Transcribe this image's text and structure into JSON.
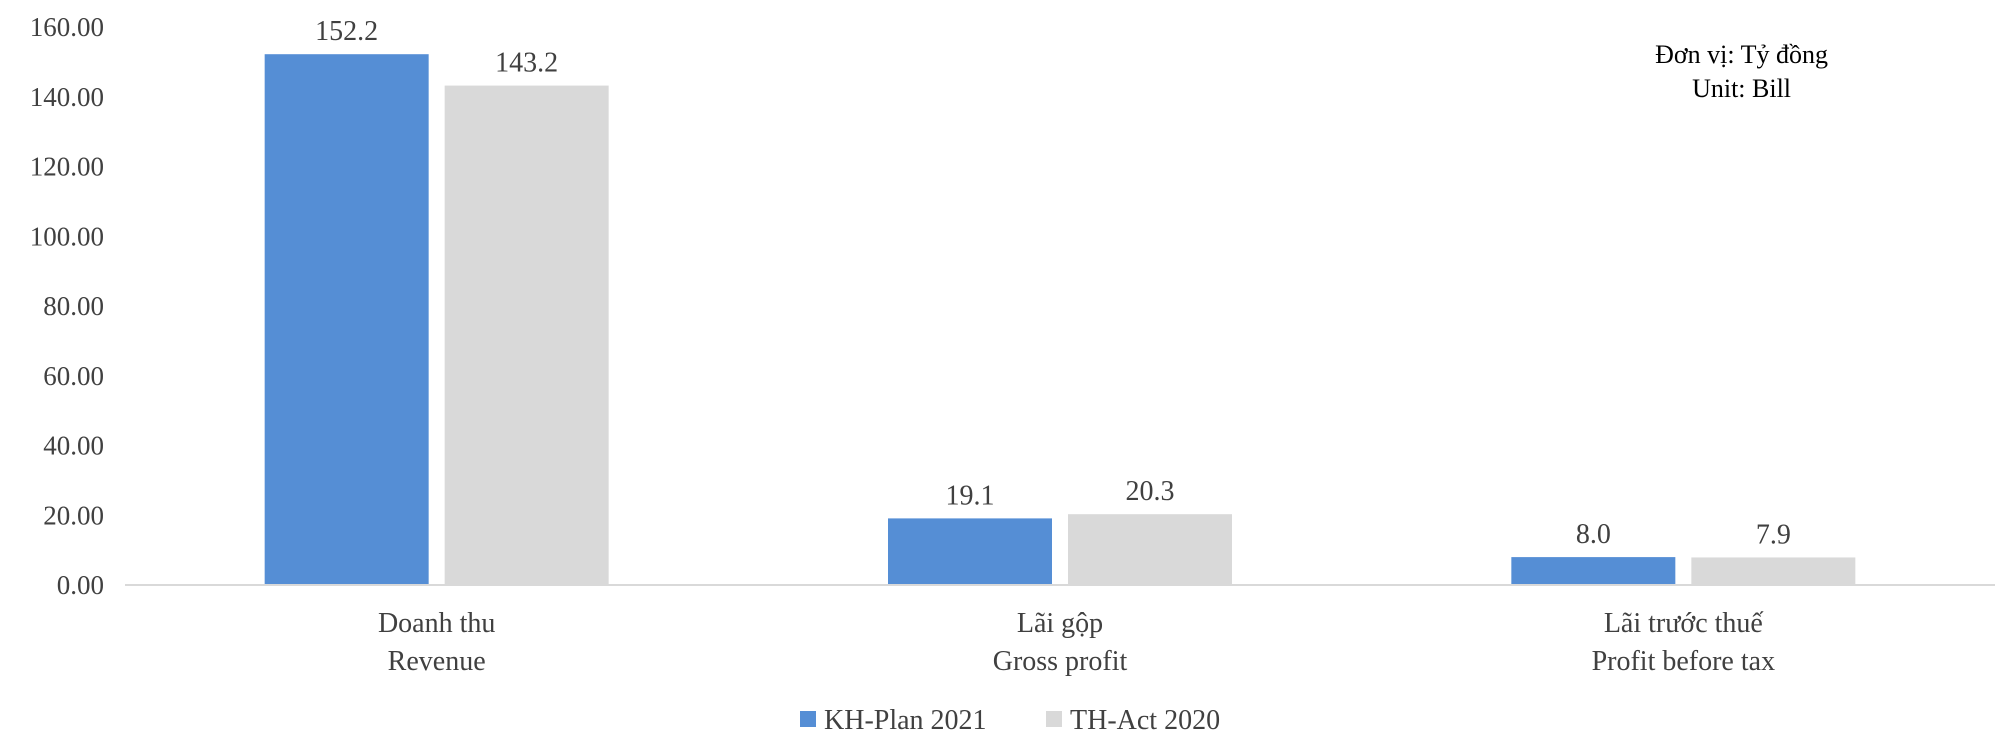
{
  "chart_data": {
    "type": "bar",
    "categories": [
      [
        "Doanh thu",
        "Revenue"
      ],
      [
        "Lãi gộp",
        "Gross profit"
      ],
      [
        "Lãi trước thuế",
        "Profit before tax"
      ]
    ],
    "series": [
      {
        "name": "KH-Plan 2021",
        "values": [
          152.2,
          19.1,
          8.0
        ],
        "labels": [
          "152.2",
          "19.1",
          "8.0"
        ],
        "color": "#558ED5"
      },
      {
        "name": "TH-Act 2020",
        "values": [
          143.2,
          20.3,
          7.9
        ],
        "labels": [
          "143.2",
          "20.3",
          "7.9"
        ],
        "color": "#D9D9D9"
      }
    ],
    "yticks": [
      "0.00",
      "20.00",
      "40.00",
      "60.00",
      "80.00",
      "100.00",
      "120.00",
      "140.00",
      "160.00"
    ],
    "ylim": [
      0,
      160
    ],
    "grid": false,
    "legend": "bottom-center",
    "note": {
      "line1": "Đơn vị: Tỷ đồng",
      "line2": "Unit: Bill"
    }
  }
}
